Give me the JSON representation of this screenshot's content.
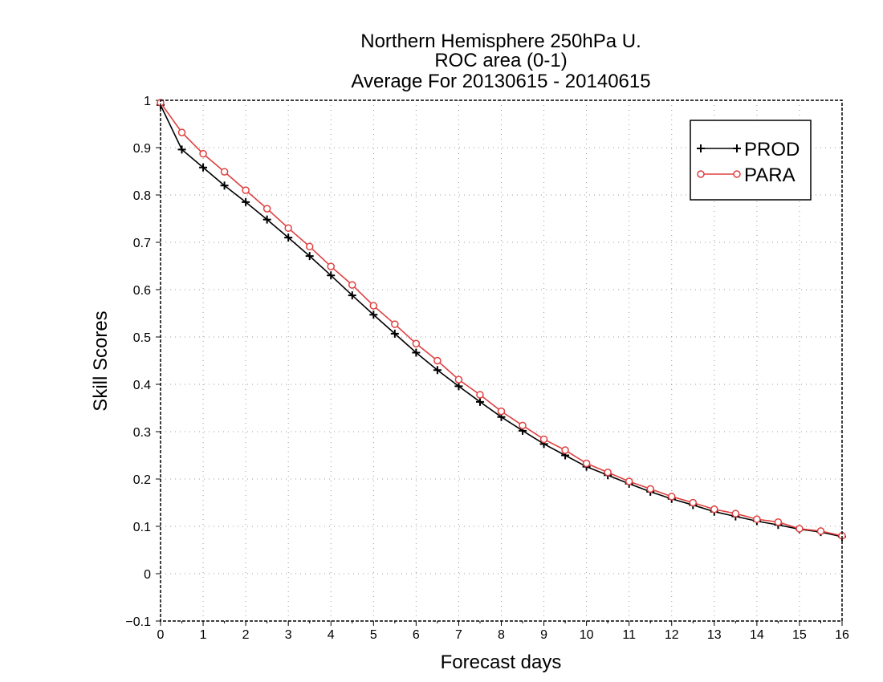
{
  "chart_data": {
    "type": "line",
    "title": [
      "Northern Hemisphere 250hPa U.",
      "ROC area (0-1)",
      "Average For 20130615 - 20140615"
    ],
    "xlabel": "Forecast days",
    "ylabel": "Skill Scores",
    "xlim": [
      0,
      16
    ],
    "ylim": [
      -0.1,
      1
    ],
    "xticks": [
      0,
      1,
      2,
      3,
      4,
      5,
      6,
      7,
      8,
      9,
      10,
      11,
      12,
      13,
      14,
      15,
      16
    ],
    "xtick_labels": [
      "0",
      "1",
      "2",
      "3",
      "4",
      "5",
      "6",
      "7",
      "8",
      "9",
      "10",
      "11",
      "12",
      "13",
      "14",
      "15",
      "16"
    ],
    "yticks": [
      -0.1,
      0,
      0.1,
      0.2,
      0.3,
      0.4,
      0.5,
      0.6,
      0.7,
      0.8,
      0.9,
      1
    ],
    "ytick_labels": [
      "−0.1",
      "0",
      "0.1",
      "0.2",
      "0.3",
      "0.4",
      "0.5",
      "0.6",
      "0.7",
      "0.8",
      "0.9",
      "1"
    ],
    "grid": true,
    "legend_position": "top-right",
    "x": [
      0,
      0.5,
      1,
      1.5,
      2,
      2.5,
      3,
      3.5,
      4,
      4.5,
      5,
      5.5,
      6,
      6.5,
      7,
      7.5,
      8,
      8.5,
      9,
      9.5,
      10,
      10.5,
      11,
      11.5,
      12,
      12.5,
      13,
      13.5,
      14,
      14.5,
      15,
      15.5,
      16
    ],
    "series": [
      {
        "name": "PROD",
        "color": "#000000",
        "marker": "plus",
        "values": [
          0.99,
          0.896,
          0.858,
          0.82,
          0.785,
          0.748,
          0.71,
          0.671,
          0.63,
          0.588,
          0.547,
          0.507,
          0.467,
          0.43,
          0.396,
          0.363,
          0.331,
          0.302,
          0.274,
          0.25,
          0.226,
          0.208,
          0.19,
          0.173,
          0.158,
          0.145,
          0.131,
          0.121,
          0.111,
          0.103,
          0.094,
          0.088,
          0.078
        ]
      },
      {
        "name": "PARA",
        "color": "#e04040",
        "marker": "circle",
        "values": [
          0.995,
          0.932,
          0.887,
          0.849,
          0.81,
          0.771,
          0.73,
          0.691,
          0.649,
          0.61,
          0.566,
          0.527,
          0.486,
          0.45,
          0.41,
          0.378,
          0.343,
          0.313,
          0.284,
          0.261,
          0.233,
          0.214,
          0.195,
          0.179,
          0.163,
          0.15,
          0.136,
          0.127,
          0.115,
          0.109,
          0.095,
          0.09,
          0.08
        ]
      }
    ]
  }
}
